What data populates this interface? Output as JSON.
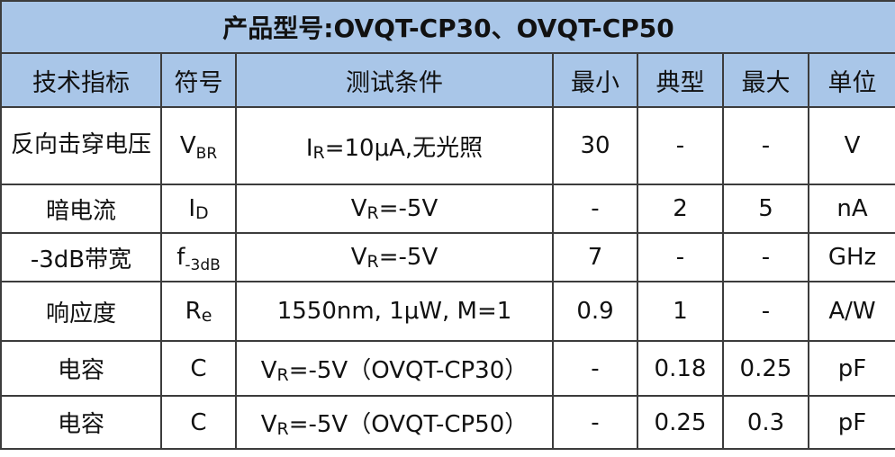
{
  "title": "产品型号:OVQT-CP30、OVQT-CP50",
  "headers": [
    "技术指标",
    "符号",
    "测试条件",
    "最小",
    "典型",
    "最大",
    "单位"
  ],
  "rows": [
    {
      "name": "反向击穿电压",
      "symbol": {
        "main": "V",
        "sub": "BR"
      },
      "condition": {
        "main": "I",
        "sub": "R",
        "rest": "=10μA,无光照"
      },
      "min": "30",
      "typ": "-",
      "max": "-",
      "unit": "V"
    },
    {
      "name": "暗电流",
      "symbol": {
        "main": "I",
        "sub": "D"
      },
      "condition": {
        "main": "V",
        "sub": "R",
        "rest": "=-5V"
      },
      "min": "-",
      "typ": "2",
      "max": "5",
      "unit": "nA"
    },
    {
      "name": "-3dB带宽",
      "symbol": {
        "main": "f",
        "sub": "-3dB"
      },
      "condition": {
        "main": "V",
        "sub": "R",
        "rest": "=-5V"
      },
      "min": "7",
      "typ": "-",
      "max": "-",
      "unit": "GHz"
    },
    {
      "name": "响应度",
      "symbol": {
        "main": "R",
        "sub": "e"
      },
      "condition": {
        "main": "",
        "sub": "",
        "rest": "1550nm, 1μW, M=1"
      },
      "min": "0.9",
      "typ": "1",
      "max": "-",
      "unit": "A/W"
    },
    {
      "name": "电容",
      "symbol": {
        "main": "C",
        "sub": ""
      },
      "condition": {
        "main": "V",
        "sub": "R",
        "rest": "=-5V（OVQT-CP30）"
      },
      "min": "-",
      "typ": "0.18",
      "max": "0.25",
      "unit": "pF"
    },
    {
      "name": "电容",
      "symbol": {
        "main": "C",
        "sub": ""
      },
      "condition": {
        "main": "V",
        "sub": "R",
        "rest": "=-5V（OVQT-CP50）"
      },
      "min": "-",
      "typ": "0.25",
      "max": "0.3",
      "unit": "pF"
    }
  ]
}
